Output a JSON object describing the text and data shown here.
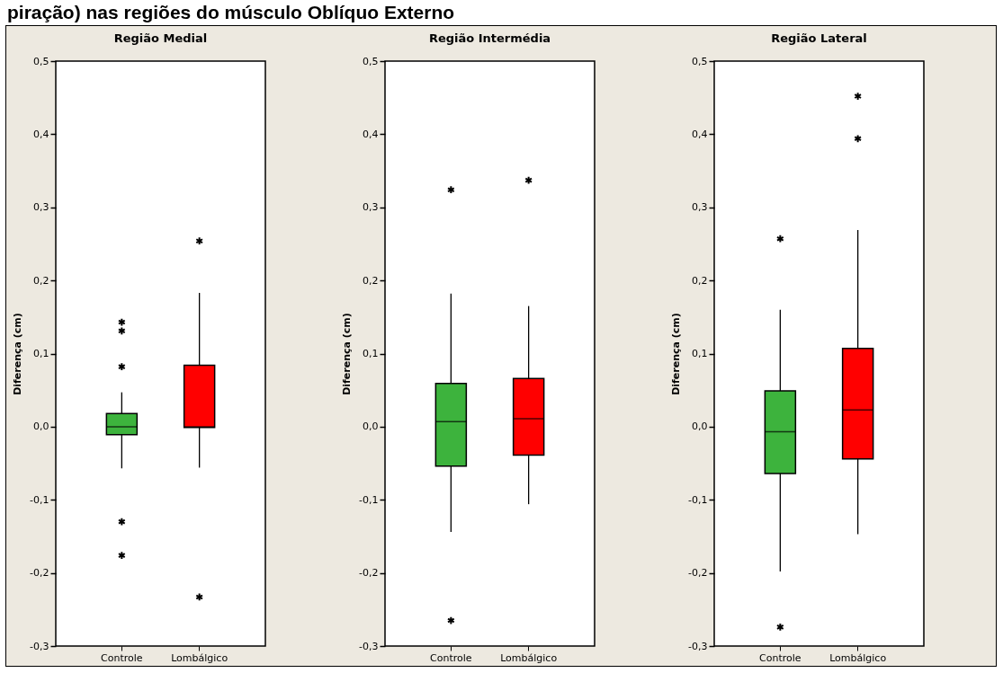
{
  "chart_data": [
    {
      "type": "box",
      "title": "Região Medial",
      "ylabel": "Diferença (cm)",
      "annotations": [
        "piração) nas regiões do músculo Oblíquo Externo"
      ],
      "categories": [
        "Controle",
        "Lombálgico"
      ],
      "colors": [
        "#3db33d",
        "#ff0000"
      ],
      "marker": "star",
      "grid": false,
      "legend": false,
      "ylim": [
        -0.3,
        0.5
      ],
      "yticks": [
        {
          "value": -0.3,
          "label": "-0,3"
        },
        {
          "value": -0.2,
          "label": "-0,2"
        },
        {
          "value": -0.1,
          "label": "-0,1"
        },
        {
          "value": 0,
          "label": "0,0"
        },
        {
          "value": 0.1,
          "label": "0,1"
        },
        {
          "value": 0.2,
          "label": "0,2"
        },
        {
          "value": 0.3,
          "label": "0,3"
        },
        {
          "value": 0.4,
          "label": "0,4"
        },
        {
          "value": 0.5,
          "label": "0,5"
        }
      ],
      "boxes": [
        {
          "low": -0.057,
          "q1": -0.011,
          "median": 0,
          "q3": 0.018,
          "high": 0.047,
          "outliers": [
            0.143,
            0.131,
            0.082,
            -0.13,
            -0.176
          ]
        },
        {
          "low": -0.056,
          "q1": -0.001,
          "median": 0,
          "q3": 0.084,
          "high": 0.183,
          "outliers": [
            0.254,
            -0.233
          ]
        }
      ]
    },
    {
      "type": "box",
      "title": "Região Intermédia",
      "ylabel": "Diferença (cm)",
      "categories": [
        "Controle",
        "Lombálgico"
      ],
      "colors": [
        "#3db33d",
        "#ff0000"
      ],
      "marker": "star",
      "grid": false,
      "legend": false,
      "ylim": [
        -0.3,
        0.5
      ],
      "yticks": [
        {
          "value": -0.3,
          "label": "-0,3"
        },
        {
          "value": -0.2,
          "label": "-0,2"
        },
        {
          "value": -0.1,
          "label": "-0,1"
        },
        {
          "value": 0,
          "label": "0,0"
        },
        {
          "value": 0.1,
          "label": "0,1"
        },
        {
          "value": 0.2,
          "label": "0,2"
        },
        {
          "value": 0.3,
          "label": "0,3"
        },
        {
          "value": 0.4,
          "label": "0,4"
        },
        {
          "value": 0.5,
          "label": "0,5"
        }
      ],
      "boxes": [
        {
          "low": -0.144,
          "q1": -0.054,
          "median": 0.007,
          "q3": 0.059,
          "high": 0.182,
          "outliers": [
            0.324,
            -0.265
          ]
        },
        {
          "low": -0.106,
          "q1": -0.039,
          "median": 0.011,
          "q3": 0.066,
          "high": 0.165,
          "outliers": [
            0.337
          ]
        }
      ]
    },
    {
      "type": "box",
      "title": "Região Lateral",
      "ylabel": "Diferença (cm)",
      "categories": [
        "Controle",
        "Lombálgico"
      ],
      "colors": [
        "#3db33d",
        "#ff0000"
      ],
      "marker": "star",
      "grid": false,
      "legend": false,
      "ylim": [
        -0.3,
        0.5
      ],
      "yticks": [
        {
          "value": -0.3,
          "label": "-0,3"
        },
        {
          "value": -0.2,
          "label": "-0,2"
        },
        {
          "value": -0.1,
          "label": "-0,1"
        },
        {
          "value": 0,
          "label": "0,0"
        },
        {
          "value": 0.1,
          "label": "0,1"
        },
        {
          "value": 0.2,
          "label": "0,2"
        },
        {
          "value": 0.3,
          "label": "0,3"
        },
        {
          "value": 0.4,
          "label": "0,4"
        },
        {
          "value": 0.5,
          "label": "0,5"
        }
      ],
      "boxes": [
        {
          "low": -0.198,
          "q1": -0.064,
          "median": -0.007,
          "q3": 0.049,
          "high": 0.16,
          "outliers": [
            0.257,
            -0.274
          ]
        },
        {
          "low": -0.147,
          "q1": -0.044,
          "median": 0.023,
          "q3": 0.107,
          "high": 0.269,
          "outliers": [
            0.452,
            0.394
          ]
        }
      ]
    }
  ]
}
